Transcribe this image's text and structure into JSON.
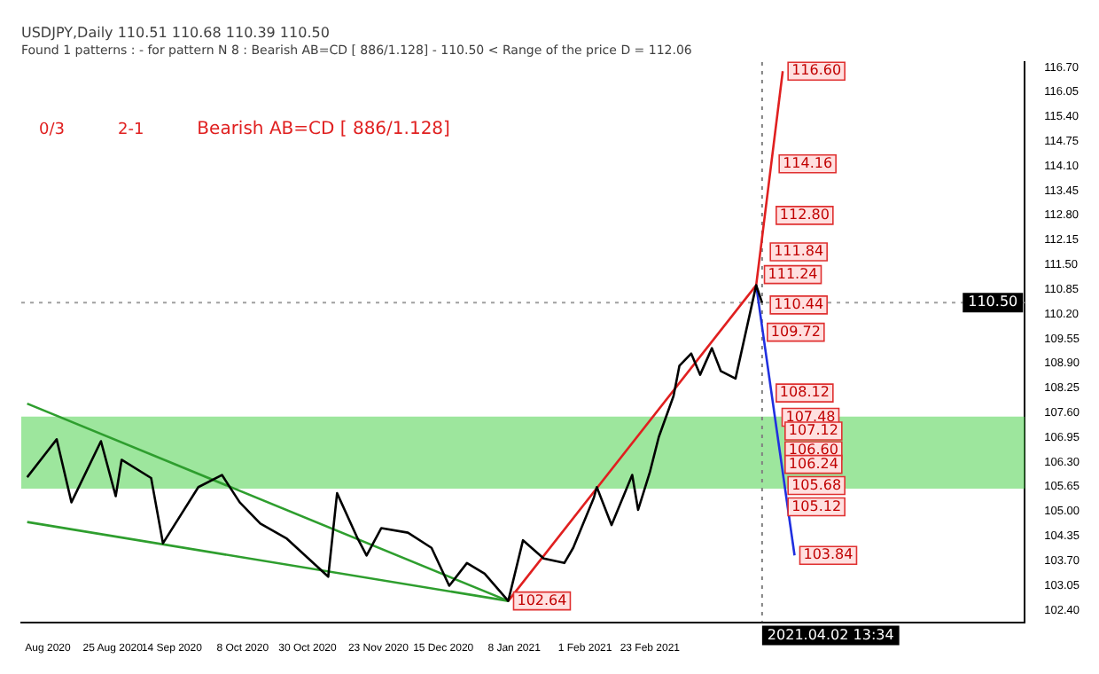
{
  "chart_data": {
    "type": "line",
    "title": "USDJPY,Daily 110.51 110.68 110.39 110.50",
    "subtitle": "Found 1 patterns : - for pattern N 8 : Bearish AB=CD [ 886/1.128] - 110.50 < Range of the price D = 112.06",
    "annotations": [
      "0/3",
      "2-1",
      "Bearish AB=CD [ 886/1.128]",
      {
        "text": "116.60",
        "x": "2021-04-09",
        "y": 116.6
      },
      {
        "text": "114.16",
        "x": "2021-04-06",
        "y": 114.16
      },
      {
        "text": "112.80",
        "x": "2021-04-05",
        "y": 112.8
      },
      {
        "text": "111.84",
        "x": "2021-04-03",
        "y": 111.84
      },
      {
        "text": "111.24",
        "x": "2021-04-01",
        "y": 111.24
      },
      {
        "text": "110.44",
        "x": "2021-04-03",
        "y": 110.44
      },
      {
        "text": "109.72",
        "x": "2021-04-02",
        "y": 109.72
      },
      {
        "text": "108.12",
        "x": "2021-04-05",
        "y": 108.12
      },
      {
        "text": "107.48",
        "x": "2021-04-07",
        "y": 107.48
      },
      {
        "text": "107.12",
        "x": "2021-04-08",
        "y": 107.12
      },
      {
        "text": "106.60",
        "x": "2021-04-08",
        "y": 106.6
      },
      {
        "text": "106.24",
        "x": "2021-04-08",
        "y": 106.24
      },
      {
        "text": "105.68",
        "x": "2021-04-09",
        "y": 105.68
      },
      {
        "text": "105.12",
        "x": "2021-04-09",
        "y": 105.12
      },
      {
        "text": "103.84",
        "x": "2021-04-13",
        "y": 103.84
      },
      {
        "text": "102.64",
        "x": "2021-01-06",
        "y": 102.64
      }
    ],
    "series": [
      {
        "color": "#000000",
        "x": [
          "2020-07-27",
          "2020-08-06",
          "2020-08-11",
          "2020-08-21",
          "2020-08-26",
          "2020-08-28",
          "2020-09-07",
          "2020-09-11",
          "2020-09-23",
          "2020-10-01",
          "2020-10-07",
          "2020-10-14",
          "2020-10-23",
          "2020-11-06",
          "2020-11-09",
          "2020-11-16",
          "2020-11-19",
          "2020-11-24",
          "2020-12-03",
          "2020-12-11",
          "2020-12-17",
          "2020-12-23",
          "2020-12-29",
          "2021-01-06",
          "2021-01-11",
          "2021-01-18",
          "2021-01-25",
          "2021-01-28",
          "2021-02-04",
          "2021-02-05",
          "2021-02-10",
          "2021-02-17",
          "2021-02-19",
          "2021-02-23",
          "2021-02-26",
          "2021-03-03",
          "2021-03-05",
          "2021-03-09",
          "2021-03-12",
          "2021-03-16",
          "2021-03-19",
          "2021-03-24",
          "2021-03-31",
          "2021-04-02"
        ],
        "values": [
          105.9,
          106.9,
          105.24,
          106.85,
          105.4,
          106.36,
          105.88,
          104.16,
          105.64,
          105.96,
          105.24,
          104.68,
          104.28,
          103.28,
          105.48,
          104.28,
          103.84,
          104.56,
          104.44,
          104.04,
          103.04,
          103.64,
          103.36,
          102.64,
          104.24,
          103.76,
          103.64,
          104.04,
          105.36,
          105.64,
          104.64,
          105.96,
          105.04,
          106.04,
          106.96,
          108.04,
          108.84,
          109.16,
          108.6,
          109.3,
          108.7,
          108.5,
          110.96,
          110.5
        ]
      },
      {
        "color": "#e02020",
        "x": [
          "2021-01-06",
          "2021-03-31",
          "2021-04-09"
        ],
        "values": [
          102.64,
          110.96,
          116.6
        ]
      },
      {
        "color": "#2030e0",
        "x": [
          "2021-03-31",
          "2021-04-13"
        ],
        "values": [
          110.96,
          103.84
        ]
      },
      {
        "color": "#2e9e2e",
        "x": [
          "2020-07-27",
          "2021-01-06"
        ],
        "values": [
          107.84,
          102.64
        ]
      },
      {
        "color": "#2e9e2e",
        "x": [
          "2020-07-27",
          "2021-01-06"
        ],
        "values": [
          104.72,
          102.64
        ]
      }
    ],
    "bands": [
      {
        "axis": "y",
        "from": 105.6,
        "to": 107.5,
        "color": "#5cd65c"
      }
    ],
    "ref_lines": [
      {
        "axis": "x",
        "value": "2021-04-02",
        "label": "2021.04.02 13:34",
        "color": "#808080",
        "line_style": "dotted"
      },
      {
        "axis": "y",
        "value": 110.5,
        "label": "110.50",
        "color": "#a0a0a0",
        "line_style": "dotted"
      }
    ],
    "xlim": [
      "2020-07-25",
      "2021-06-30"
    ],
    "xticks": [
      {
        "value": "2020-08-03",
        "label": "Aug 2020"
      },
      {
        "value": "2020-08-25",
        "label": "25 Aug 2020"
      },
      {
        "value": "2020-09-14",
        "label": "14 Sep 2020"
      },
      {
        "value": "2020-10-08",
        "label": "8 Oct 2020"
      },
      {
        "value": "2020-10-30",
        "label": "30 Oct 2020"
      },
      {
        "value": "2020-11-23",
        "label": "23 Nov 2020"
      },
      {
        "value": "2020-12-15",
        "label": "15 Dec 2020"
      },
      {
        "value": "2021-01-08",
        "label": "8 Jan 2021"
      },
      {
        "value": "2021-02-01",
        "label": "1 Feb 2021"
      },
      {
        "value": "2021-02-23",
        "label": "23 Feb 2021"
      }
    ],
    "ylim": [
      102.08,
      116.84
    ],
    "yticks": [
      {
        "value": 102.4,
        "label": "102.40"
      },
      {
        "value": 103.05,
        "label": "103.05"
      },
      {
        "value": 103.7,
        "label": "103.70"
      },
      {
        "value": 104.35,
        "label": "104.35"
      },
      {
        "value": 105.0,
        "label": "105.00"
      },
      {
        "value": 105.65,
        "label": "105.65"
      },
      {
        "value": 106.3,
        "label": "106.30"
      },
      {
        "value": 106.95,
        "label": "106.95"
      },
      {
        "value": 107.6,
        "label": "107.60"
      },
      {
        "value": 108.25,
        "label": "108.25"
      },
      {
        "value": 108.9,
        "label": "108.90"
      },
      {
        "value": 109.55,
        "label": "109.55"
      },
      {
        "value": 110.2,
        "label": "110.20"
      },
      {
        "value": 110.85,
        "label": "110.85"
      },
      {
        "value": 111.5,
        "label": "111.50"
      },
      {
        "value": 112.15,
        "label": "112.15"
      },
      {
        "value": 112.8,
        "label": "112.80"
      },
      {
        "value": 113.45,
        "label": "113.45"
      },
      {
        "value": 114.1,
        "label": "114.10"
      },
      {
        "value": 114.75,
        "label": "114.75"
      },
      {
        "value": 115.4,
        "label": "115.40"
      },
      {
        "value": 116.05,
        "label": "116.05"
      },
      {
        "value": 116.7,
        "label": "116.70"
      }
    ],
    "grid": false,
    "legend": false,
    "marker": "none",
    "line_style": "solid"
  }
}
